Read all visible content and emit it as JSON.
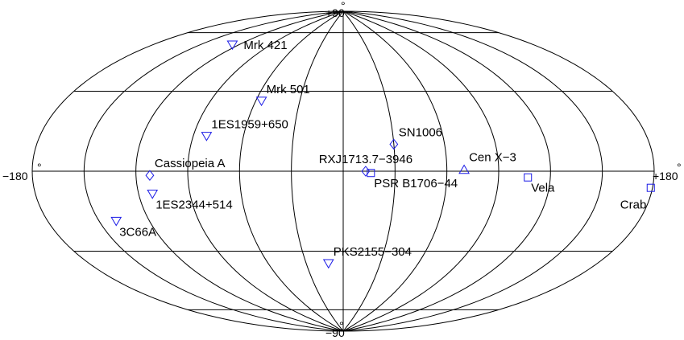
{
  "chart_data": {
    "type": "scatter",
    "projection": "aitoff",
    "title": "",
    "xlabel": "",
    "ylabel": "",
    "xlim": [
      -180,
      180
    ],
    "ylim": [
      -90,
      90
    ],
    "grid": true,
    "meridians": [
      -180,
      -150,
      -120,
      -90,
      -60,
      -30,
      0,
      30,
      60,
      90,
      120,
      150,
      180
    ],
    "parallels": [
      -60,
      -30,
      0,
      30,
      60
    ],
    "axis_labels": {
      "left": "−180",
      "right": "+180",
      "top": "+90",
      "bottom": "−90",
      "degree_symbol": "°"
    },
    "marker_color": "#1a1ae6",
    "marker_shapes": [
      "triangle-down",
      "diamond",
      "square",
      "triangle-up"
    ],
    "points": [
      {
        "label": "Mrk 421",
        "x": -125,
        "y": 63,
        "marker": "triangle-down",
        "label_pos": "right"
      },
      {
        "label": "Mrk 501",
        "x": -56,
        "y": 38,
        "marker": "triangle-down",
        "label_pos": "above-right"
      },
      {
        "label": "1ES1959+650",
        "x": -82,
        "y": 18,
        "marker": "triangle-down",
        "label_pos": "above-right"
      },
      {
        "label": "Cassiopeia A",
        "x": -112,
        "y": -2,
        "marker": "diamond",
        "label_pos": "above-right"
      },
      {
        "label": "1ES2344+514",
        "x": -112,
        "y": -11,
        "marker": "triangle-down",
        "label_pos": "below-right"
      },
      {
        "label": "3C66A",
        "x": -140,
        "y": -22,
        "marker": "triangle-down",
        "label_pos": "below-right"
      },
      {
        "label": "SN1006",
        "x": 30,
        "y": 15,
        "marker": "diamond",
        "label_pos": "above-right"
      },
      {
        "label": "RXJ1713.7−3946",
        "x": 13,
        "y": 0,
        "marker": "diamond",
        "label_pos": "above"
      },
      {
        "label": "PSR B1706−44",
        "x": 16,
        "y": -1,
        "marker": "square",
        "label_pos": "below-right"
      },
      {
        "label": "Cen X−3",
        "x": 70,
        "y": 1,
        "marker": "triangle-up",
        "label_pos": "above-right"
      },
      {
        "label": "Vela",
        "x": 107,
        "y": -3,
        "marker": "square",
        "label_pos": "below-right"
      },
      {
        "label": "Crab",
        "x": 179,
        "y": -6,
        "marker": "square",
        "label_pos": "below-left"
      },
      {
        "label": "PKS2155−304",
        "x": -12,
        "y": -52,
        "marker": "triangle-down",
        "label_pos": "above-right"
      }
    ]
  }
}
